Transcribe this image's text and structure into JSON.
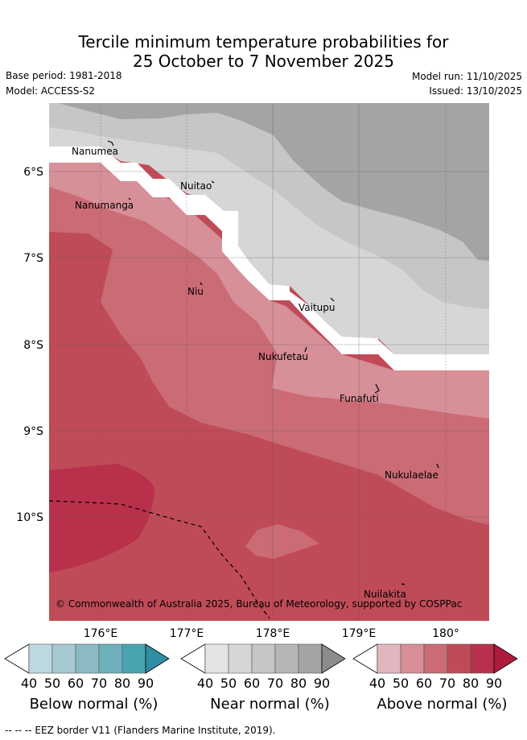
{
  "header": {
    "title_line1": "Tercile minimum temperature probabilities for",
    "title_line2": "25 October to 7 November 2025",
    "base_period": "Base period: 1981-2018",
    "model": "Model: ACCESS-S2",
    "model_run": "Model run: 11/10/2025",
    "issued": "Issued: 13/10/2025"
  },
  "map": {
    "lon_range": [
      175.4,
      180.5
    ],
    "lat_range": [
      -5.2,
      -11.2
    ],
    "lon_ticks": [
      "176°E",
      "177°E",
      "178°E",
      "179°E",
      "180°"
    ],
    "lat_ticks": [
      "6°S",
      "7°S",
      "8°S",
      "9°S",
      "10°S"
    ],
    "islands": [
      {
        "name": "Nanumea"
      },
      {
        "name": "Nuitao"
      },
      {
        "name": "Nanumanga"
      },
      {
        "name": "Niu"
      },
      {
        "name": "Vaitupu"
      },
      {
        "name": "Nukufetau"
      },
      {
        "name": "Funafuti"
      },
      {
        "name": "Nukulaelae"
      },
      {
        "name": "Nuilakita"
      }
    ],
    "copyright": "© Commonwealth of Australia 2025, Bureau of Meteorology, supported by COSPPac"
  },
  "legends": [
    {
      "title": "Below normal (%)",
      "ticks": [
        "40",
        "50",
        "60",
        "70",
        "80",
        "90"
      ],
      "colors": [
        "#bdd8de",
        "#a6cacf",
        "#8bbac4",
        "#6fb0bd",
        "#4aa3b1",
        "#2e8ea3"
      ]
    },
    {
      "title": "Near normal (%)",
      "ticks": [
        "40",
        "50",
        "60",
        "70",
        "80",
        "90"
      ],
      "colors": [
        "#e4e4e4",
        "#d6d6d6",
        "#c6c6c6",
        "#b6b6b6",
        "#a4a4a4",
        "#8c8c8c"
      ]
    },
    {
      "title": "Above normal (%)",
      "ticks": [
        "40",
        "50",
        "60",
        "70",
        "80",
        "90"
      ],
      "colors": [
        "#e2b6bf",
        "#d78f98",
        "#ca6b75",
        "#c04b58",
        "#b8304a",
        "#ad1c3c"
      ]
    }
  ],
  "footer": "--  --  -- EEZ border V11 (Flanders Marine Institute, 2019)."
}
